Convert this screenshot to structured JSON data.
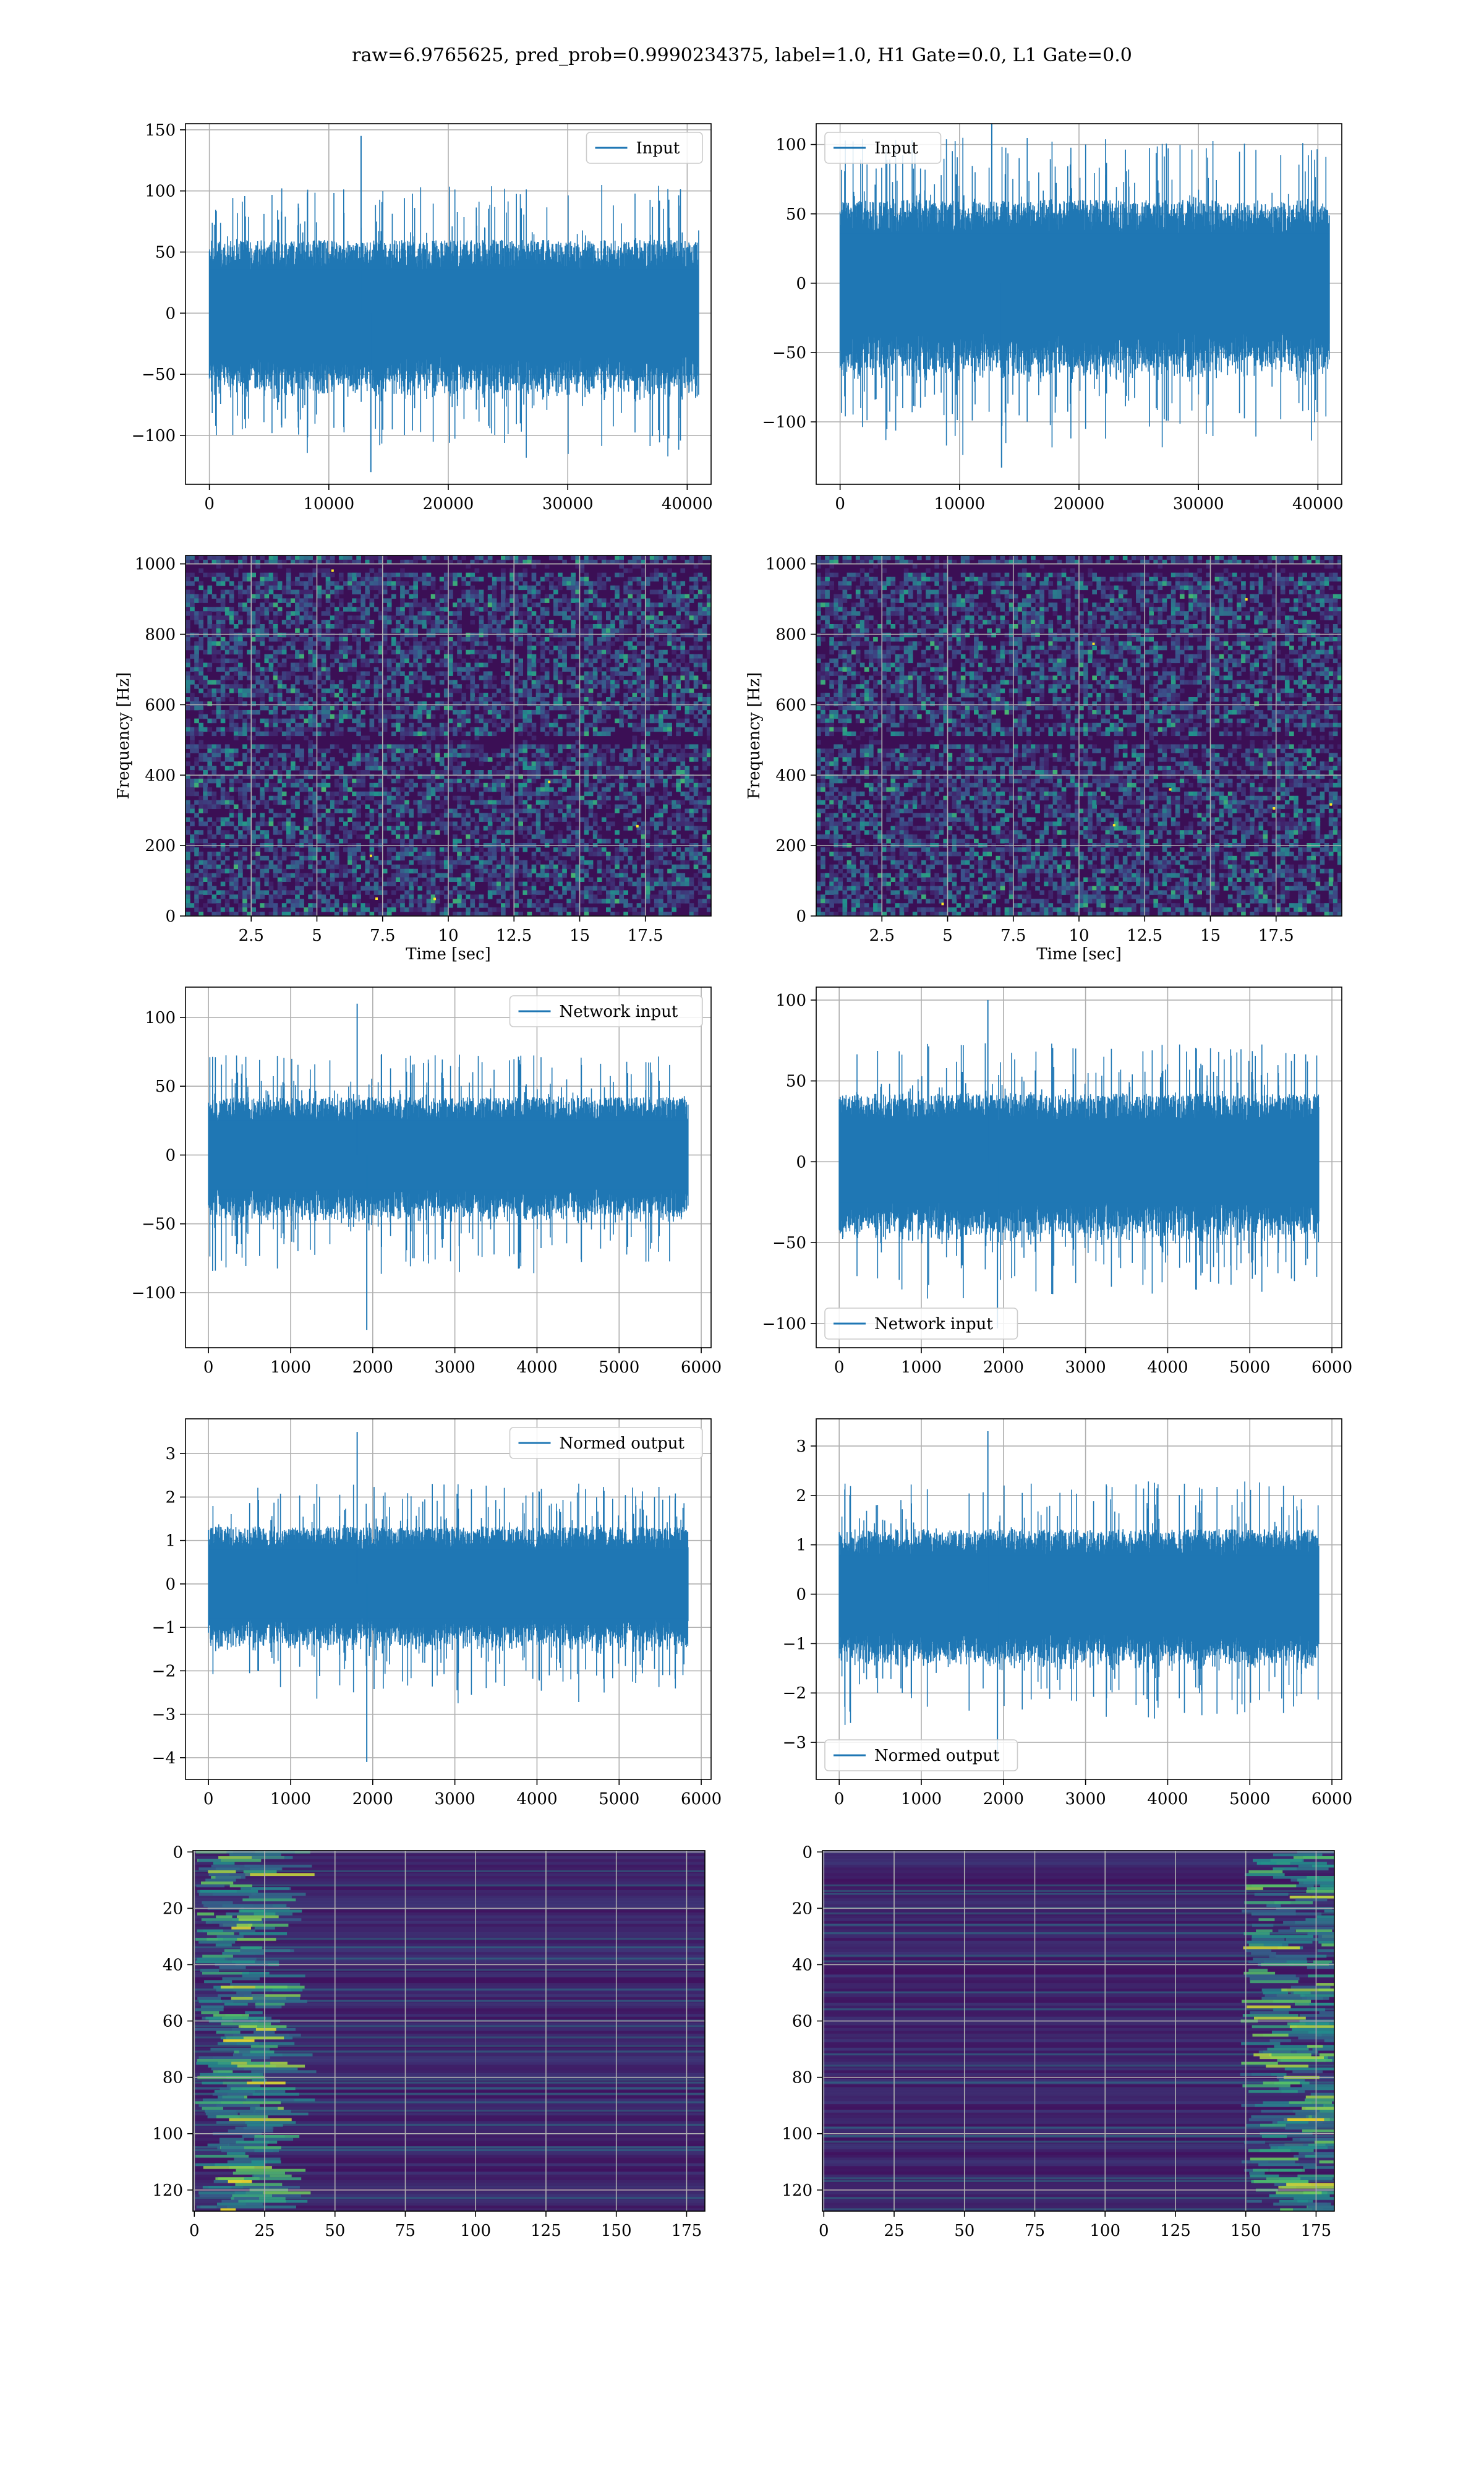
{
  "figure": {
    "title": "raw=6.9765625, pred_prob=0.9990234375, label=1.0, H1 Gate=0.0, L1 Gate=0.0"
  },
  "colors": {
    "series": "#1f77b4",
    "grid": "#b0b0b0",
    "viridis_low": "#3b0f55",
    "viridis_mid": "#21908d",
    "viridis_high": "#fde725"
  },
  "chart_data": [
    {
      "id": "r1c1",
      "type": "line",
      "panel_kind": "timeseries",
      "legend": "Input",
      "legend_loc": "upper right",
      "xlim": [
        -2000,
        42000
      ],
      "ylim": [
        -140,
        155
      ],
      "xticks": [
        0,
        10000,
        20000,
        30000,
        40000
      ],
      "yticks": [
        -100,
        -50,
        0,
        50,
        100,
        150
      ],
      "x_range": [
        0,
        40960
      ],
      "band_amplitude": 50,
      "peak_max": 145,
      "peak_min": -130,
      "xlabel": "",
      "ylabel": ""
    },
    {
      "id": "r1c2",
      "type": "line",
      "panel_kind": "timeseries",
      "legend": "Input",
      "legend_loc": "upper left",
      "xlim": [
        -2000,
        42000
      ],
      "ylim": [
        -145,
        115
      ],
      "xticks": [
        0,
        10000,
        20000,
        30000,
        40000
      ],
      "yticks": [
        -100,
        -50,
        0,
        50,
        100
      ],
      "x_range": [
        0,
        40960
      ],
      "band_amplitude": 50,
      "peak_max": 120,
      "peak_min": -133,
      "xlabel": "",
      "ylabel": ""
    },
    {
      "id": "r2c1",
      "type": "heatmap",
      "panel_kind": "spectrogram",
      "xlim": [
        0,
        20
      ],
      "ylim": [
        0,
        1024
      ],
      "xticks": [
        2.5,
        5.0,
        7.5,
        10.0,
        12.5,
        15.0,
        17.5
      ],
      "yticks": [
        0,
        200,
        400,
        600,
        800,
        1000
      ],
      "xlabel": "Time [sec]",
      "ylabel": "Frequency [Hz]"
    },
    {
      "id": "r2c2",
      "type": "heatmap",
      "panel_kind": "spectrogram",
      "xlim": [
        0,
        20
      ],
      "ylim": [
        0,
        1024
      ],
      "xticks": [
        2.5,
        5.0,
        7.5,
        10.0,
        12.5,
        15.0,
        17.5
      ],
      "yticks": [
        0,
        200,
        400,
        600,
        800,
        1000
      ],
      "xlabel": "Time [sec]",
      "ylabel": "Frequency [Hz]"
    },
    {
      "id": "r3c1",
      "type": "line",
      "panel_kind": "timeseries",
      "legend": "Network input",
      "legend_loc": "upper right",
      "xlim": [
        -280,
        6120
      ],
      "ylim": [
        -140,
        122
      ],
      "xticks": [
        0,
        1000,
        2000,
        3000,
        4000,
        5000,
        6000
      ],
      "yticks": [
        -100,
        -50,
        0,
        50,
        100
      ],
      "x_range": [
        0,
        5840
      ],
      "band_amplitude": 35,
      "peak_max": 110,
      "peak_min": -127,
      "xlabel": "",
      "ylabel": ""
    },
    {
      "id": "r3c2",
      "type": "line",
      "panel_kind": "timeseries",
      "legend": "Network input",
      "legend_loc": "lower left",
      "xlim": [
        -280,
        6120
      ],
      "ylim": [
        -115,
        108
      ],
      "xticks": [
        0,
        1000,
        2000,
        3000,
        4000,
        5000,
        6000
      ],
      "yticks": [
        -100,
        -50,
        0,
        50,
        100
      ],
      "x_range": [
        0,
        5840
      ],
      "band_amplitude": 35,
      "peak_max": 100,
      "peak_min": -103,
      "xlabel": "",
      "ylabel": ""
    },
    {
      "id": "r4c1",
      "type": "line",
      "panel_kind": "timeseries",
      "legend": "Normed output",
      "legend_loc": "upper right",
      "xlim": [
        -280,
        6120
      ],
      "ylim": [
        -4.5,
        3.8
      ],
      "xticks": [
        0,
        1000,
        2000,
        3000,
        4000,
        5000,
        6000
      ],
      "yticks": [
        -4,
        -3,
        -2,
        -1,
        0,
        1,
        2,
        3
      ],
      "x_range": [
        0,
        5840
      ],
      "band_amplitude": 1.1,
      "peak_max": 3.5,
      "peak_min": -4.1,
      "xlabel": "",
      "ylabel": ""
    },
    {
      "id": "r4c2",
      "type": "line",
      "panel_kind": "timeseries",
      "legend": "Normed output",
      "legend_loc": "lower left",
      "xlim": [
        -280,
        6120
      ],
      "ylim": [
        -3.75,
        3.55
      ],
      "xticks": [
        0,
        1000,
        2000,
        3000,
        4000,
        5000,
        6000
      ],
      "yticks": [
        -3,
        -2,
        -1,
        0,
        1,
        2,
        3
      ],
      "x_range": [
        0,
        5840
      ],
      "band_amplitude": 1.1,
      "peak_max": 3.3,
      "peak_min": -3.4,
      "xlabel": "",
      "ylabel": ""
    },
    {
      "id": "r5c1",
      "type": "heatmap",
      "panel_kind": "feature_map",
      "y_inverted": true,
      "xlim": [
        -0.5,
        181.5
      ],
      "ylim": [
        -0.5,
        127.5
      ],
      "xticks": [
        0,
        25,
        50,
        75,
        100,
        125,
        150,
        175
      ],
      "yticks": [
        0,
        20,
        40,
        60,
        80,
        100,
        120
      ],
      "hot_region": "left",
      "xlabel": "",
      "ylabel": ""
    },
    {
      "id": "r5c2",
      "type": "heatmap",
      "panel_kind": "feature_map",
      "y_inverted": true,
      "xlim": [
        -0.5,
        181.5
      ],
      "ylim": [
        -0.5,
        127.5
      ],
      "xticks": [
        0,
        25,
        50,
        75,
        100,
        125,
        150,
        175
      ],
      "yticks": [
        0,
        20,
        40,
        60,
        80,
        100,
        120
      ],
      "hot_region": "right",
      "xlabel": "",
      "ylabel": ""
    }
  ]
}
